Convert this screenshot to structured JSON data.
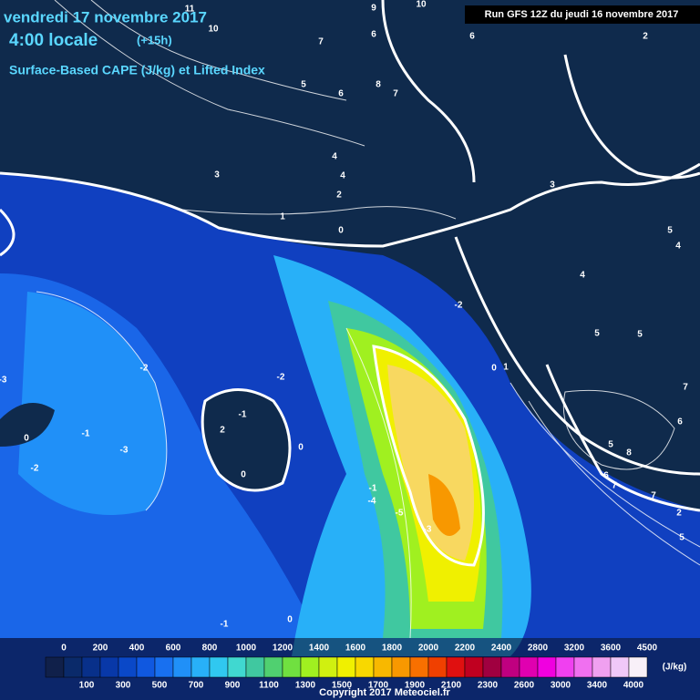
{
  "header": {
    "date": "vendredi 17 novembre 2017",
    "time": "4:00 locale",
    "offset": "(+15h)",
    "title": "Surface-Based CAPE (J/kg) et Lifted Index",
    "run": "Run GFS 12Z du jeudi 16 novembre 2017"
  },
  "contour_labels": [
    11,
    10,
    9,
    10,
    6,
    6,
    2,
    8,
    7,
    7,
    5,
    6,
    4,
    4,
    3,
    2,
    1,
    0,
    3,
    4,
    5,
    5,
    5,
    4,
    6,
    7,
    5,
    8,
    6,
    7,
    7,
    5,
    2,
    1,
    0,
    -2,
    -2,
    -3,
    -2,
    -1,
    -2,
    0,
    2,
    -1,
    0,
    -3,
    -4,
    -5,
    -3,
    -1,
    0,
    -1,
    0
  ],
  "colorbar": {
    "top_labels": [
      0,
      200,
      400,
      600,
      800,
      1000,
      1200,
      1400,
      1600,
      1800,
      2000,
      2200,
      2400,
      2800,
      3200,
      3600,
      4500
    ],
    "bottom_labels": [
      100,
      300,
      500,
      700,
      900,
      1100,
      1300,
      1500,
      1700,
      1900,
      2100,
      2300,
      2600,
      3000,
      3400,
      4000
    ],
    "unit": "(J/kg)",
    "colors": [
      "#10204a",
      "#0a2a6a",
      "#08308a",
      "#0838a8",
      "#0a48c8",
      "#1058e0",
      "#1870f0",
      "#2090f8",
      "#28b0f8",
      "#30c8f0",
      "#40d8d0",
      "#40c8a0",
      "#50d070",
      "#70e040",
      "#a0f020",
      "#d0f010",
      "#f0f000",
      "#f8d800",
      "#f8b800",
      "#f89800",
      "#f87000",
      "#f04000",
      "#e01010",
      "#c00020",
      "#a00040",
      "#c00080",
      "#e000b0",
      "#f000e0",
      "#f040f0",
      "#f070f0",
      "#f0a0f0",
      "#f0c8f8",
      "#f8f0f8"
    ]
  },
  "footer": {
    "copyright": "Copyright 2017 Meteociel.fr"
  }
}
